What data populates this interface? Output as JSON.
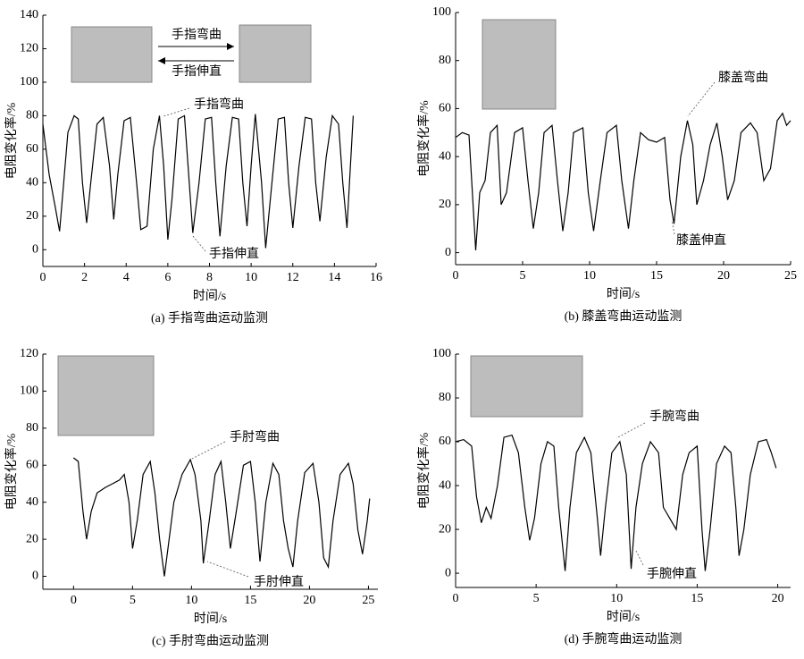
{
  "chart_data": [
    {
      "type": "line",
      "title": "(a) 手指弯曲运动监测",
      "xlabel": "时间/s",
      "ylabel": "电阻变化率/%",
      "inset_labels": [
        "手指弯曲",
        "手指伸直"
      ],
      "annotations": [
        "手指弯曲",
        "手指伸直"
      ],
      "xlim": [
        0,
        16
      ],
      "ylim": [
        -10,
        140
      ],
      "xticks": [
        0,
        2,
        4,
        6,
        8,
        10,
        12,
        14,
        16
      ],
      "yticks": [
        0,
        20,
        40,
        60,
        80,
        100,
        120,
        140
      ],
      "x": [
        0,
        0.3,
        0.6,
        0.8,
        1.0,
        1.2,
        1.5,
        1.7,
        1.9,
        2.1,
        2.3,
        2.6,
        2.9,
        3.2,
        3.4,
        3.6,
        3.9,
        4.2,
        4.5,
        4.7,
        5.0,
        5.3,
        5.6,
        5.8,
        6.0,
        6.2,
        6.5,
        6.8,
        7.0,
        7.2,
        7.5,
        7.8,
        8.1,
        8.3,
        8.5,
        8.8,
        9.1,
        9.4,
        9.6,
        9.8,
        10.0,
        10.2,
        10.5,
        10.7,
        11.0,
        11.3,
        11.6,
        11.8,
        12.0,
        12.3,
        12.6,
        12.9,
        13.1,
        13.3,
        13.6,
        13.9,
        14.2,
        14.4,
        14.6,
        14.9
      ],
      "series": [
        {
          "color": "#000000",
          "values": [
            75,
            45,
            25,
            11,
            40,
            70,
            80,
            78,
            40,
            16,
            40,
            75,
            79,
            50,
            18,
            45,
            77,
            79,
            40,
            12,
            14,
            60,
            80,
            50,
            6,
            30,
            78,
            80,
            45,
            10,
            40,
            78,
            79,
            40,
            8,
            50,
            79,
            78,
            40,
            14,
            50,
            81,
            40,
            1,
            40,
            78,
            79,
            40,
            13,
            50,
            79,
            78,
            40,
            17,
            55,
            80,
            75,
            40,
            13,
            80
          ]
        }
      ]
    },
    {
      "type": "line",
      "title": "(b) 膝盖弯曲运动监测",
      "xlabel": "时间/s",
      "ylabel": "电阻变化率/%",
      "annotations": [
        "膝盖弯曲",
        "膝盖伸直"
      ],
      "xlim": [
        0,
        25
      ],
      "ylim": [
        -5,
        100
      ],
      "xticks": [
        0,
        5,
        10,
        15,
        20,
        25
      ],
      "yticks": [
        0,
        20,
        40,
        60,
        80,
        100
      ],
      "x": [
        0,
        0.5,
        1.0,
        1.2,
        1.5,
        1.8,
        2.2,
        2.6,
        3.1,
        3.4,
        3.8,
        4.4,
        5.0,
        5.4,
        5.8,
        6.2,
        6.6,
        7.2,
        7.6,
        8.0,
        8.4,
        8.8,
        9.5,
        9.9,
        10.3,
        10.8,
        11.3,
        12.0,
        12.4,
        12.9,
        13.3,
        13.8,
        14.4,
        15.0,
        15.6,
        16.0,
        16.3,
        16.8,
        17.3,
        17.7,
        18.0,
        18.5,
        19.0,
        19.5,
        19.9,
        20.3,
        20.8,
        21.3,
        22.0,
        22.5,
        23.0,
        23.5,
        24.0,
        24.4,
        24.7,
        25.0
      ],
      "series": [
        {
          "color": "#000000",
          "values": [
            48,
            50,
            49,
            30,
            1,
            25,
            30,
            50,
            53,
            20,
            25,
            50,
            52,
            30,
            10,
            25,
            50,
            53,
            30,
            9,
            25,
            50,
            52,
            25,
            9,
            30,
            50,
            53,
            30,
            10,
            30,
            50,
            47,
            46,
            48,
            22,
            12,
            40,
            55,
            45,
            20,
            30,
            45,
            54,
            40,
            22,
            30,
            50,
            54,
            50,
            30,
            35,
            55,
            58,
            53,
            55
          ]
        }
      ]
    },
    {
      "type": "line",
      "title": "(c) 手肘弯曲运动监测",
      "xlabel": "时间/s",
      "ylabel": "电阻变化率/%",
      "annotations": [
        "手肘弯曲",
        "手肘伸直"
      ],
      "xlim": [
        -2.6,
        25.8
      ],
      "ylim": [
        -7,
        120
      ],
      "xticks": [
        0,
        5,
        10,
        15,
        20,
        25
      ],
      "yticks": [
        0,
        20,
        40,
        60,
        80,
        100,
        120
      ],
      "x": [
        0,
        0.4,
        0.8,
        1.1,
        1.5,
        2.0,
        2.7,
        3.3,
        3.9,
        4.3,
        4.7,
        5.0,
        5.4,
        5.9,
        6.5,
        6.9,
        7.3,
        7.7,
        8.0,
        8.5,
        9.2,
        9.9,
        10.3,
        10.8,
        11.0,
        11.5,
        12.0,
        12.5,
        12.9,
        13.3,
        13.8,
        14.4,
        15.0,
        15.4,
        15.8,
        16.3,
        16.9,
        17.4,
        17.8,
        18.2,
        18.6,
        19.0,
        19.6,
        20.3,
        20.8,
        21.2,
        21.6,
        22.0,
        22.6,
        23.3,
        23.7,
        24.1,
        24.5,
        24.9,
        25.1
      ],
      "series": [
        {
          "color": "#000000",
          "values": [
            64,
            62,
            35,
            20,
            35,
            45,
            48,
            50,
            52,
            55,
            40,
            15,
            30,
            55,
            62,
            45,
            20,
            0,
            15,
            40,
            55,
            63,
            55,
            30,
            7,
            30,
            55,
            62,
            40,
            15,
            35,
            60,
            62,
            40,
            8,
            40,
            61,
            55,
            30,
            15,
            5,
            30,
            56,
            61,
            40,
            10,
            5,
            30,
            55,
            61,
            50,
            25,
            12,
            30,
            42
          ]
        }
      ]
    },
    {
      "type": "line",
      "title": "(d) 手腕弯曲运动监测",
      "xlabel": "时间/s",
      "ylabel": "电阻变化率/%",
      "annotations": [
        "手腕弯曲",
        "手腕伸直"
      ],
      "xlim": [
        0,
        20.8
      ],
      "ylim": [
        -6.5,
        100
      ],
      "xticks": [
        0,
        5,
        10,
        15,
        20
      ],
      "yticks": [
        0,
        20,
        40,
        60,
        80,
        100
      ],
      "x": [
        0,
        0.5,
        1.0,
        1.3,
        1.6,
        1.9,
        2.2,
        2.6,
        3.0,
        3.5,
        3.9,
        4.3,
        4.6,
        4.9,
        5.3,
        5.7,
        6.1,
        6.4,
        6.8,
        7.1,
        7.5,
        8.0,
        8.4,
        8.8,
        9.0,
        9.3,
        9.7,
        10.2,
        10.6,
        10.9,
        11.2,
        11.6,
        12.1,
        12.6,
        12.9,
        13.3,
        13.7,
        14.1,
        14.5,
        15.0,
        15.3,
        15.5,
        15.8,
        16.2,
        16.7,
        17.1,
        17.4,
        17.6,
        17.9,
        18.3,
        18.8,
        19.3,
        19.6,
        19.9
      ],
      "series": [
        {
          "color": "#000000",
          "values": [
            60,
            61,
            58,
            35,
            23,
            30,
            25,
            40,
            62,
            63,
            55,
            30,
            15,
            25,
            50,
            60,
            58,
            30,
            1,
            30,
            55,
            62,
            55,
            25,
            8,
            30,
            55,
            60,
            45,
            2,
            30,
            50,
            60,
            55,
            30,
            25,
            20,
            45,
            55,
            58,
            20,
            1,
            20,
            50,
            58,
            55,
            30,
            8,
            20,
            45,
            60,
            61,
            55,
            48
          ]
        }
      ]
    }
  ]
}
